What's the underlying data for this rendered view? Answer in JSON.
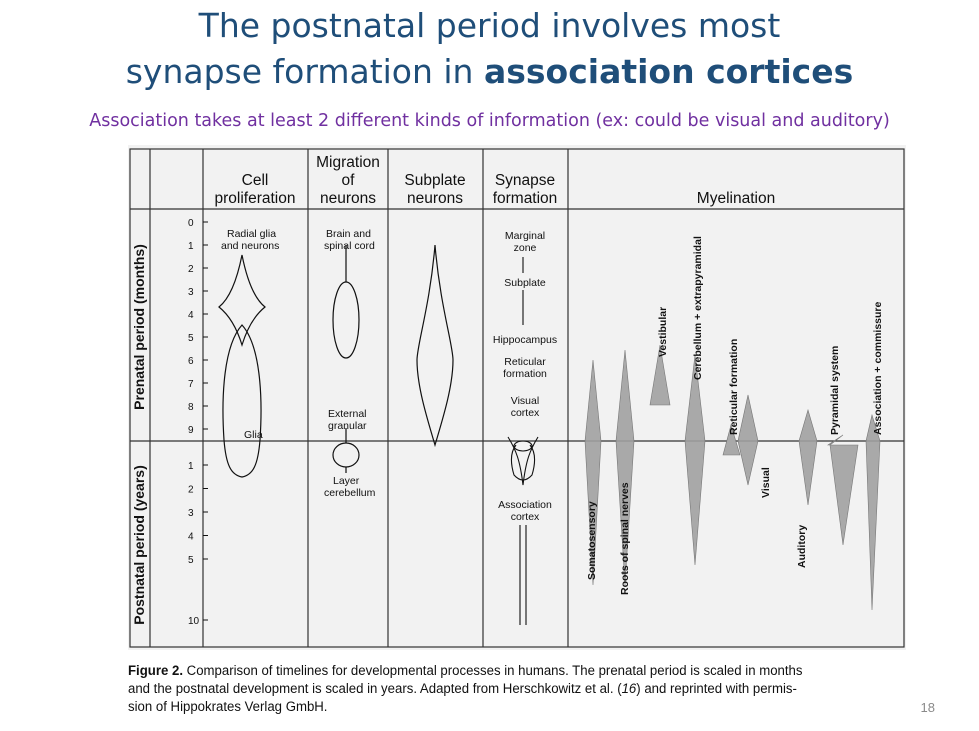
{
  "slide": {
    "title_line1": "The postnatal period involves most",
    "title_line2_prefix": "synapse formation in ",
    "title_line2_bold": "association cortices",
    "subtitle": "Association takes at least 2 different kinds of information (ex: could be visual and auditory)",
    "slide_number": "18"
  },
  "figure": {
    "headers": {
      "cell1": "Cell",
      "cell2": "proliferation",
      "mig1": "Migration",
      "mig2": "of",
      "mig3": "neurons",
      "sub1": "Subplate",
      "sub2": "neurons",
      "syn1": "Synapse",
      "syn2": "formation",
      "myelination": "Myelination"
    },
    "prenatal_label": "Prenatal period (months)",
    "postnatal_label": "Postnatal period (years)",
    "prenatal_ticks": [
      "0",
      "1",
      "2",
      "3",
      "4",
      "5",
      "6",
      "7",
      "8",
      "9"
    ],
    "postnatal_ticks": [
      "1",
      "2",
      "3",
      "4",
      "5",
      "10"
    ],
    "labels": {
      "radial1": "Radial glia",
      "radial2": "and neurons",
      "glia": "Glia",
      "brain1": "Brain and",
      "brain2": "spinal cord",
      "ext1": "External",
      "ext2": "granular",
      "layer1": "Layer",
      "layer2": "cerebellum",
      "marg1": "Marginal",
      "marg2": "zone",
      "subplate": "Subplate",
      "hippo": "Hippocampus",
      "ret1": "Reticular",
      "ret2": "formation",
      "vis1": "Visual",
      "vis2": "cortex",
      "assoc1": "Association",
      "assoc2": "cortex"
    },
    "myelination_tracts": [
      "Somatosensory",
      "Roots of spinal nerves",
      "Vestibular",
      "Cerebellum + extrapyramidal",
      "Visual",
      "Reticular formation",
      "Auditory",
      "Pyramidal system",
      "Association + commissure"
    ]
  },
  "caption": {
    "figure_label": "Figure 2.",
    "line1": " Comparison of timelines for developmental processes in humans. The prenatal period is scaled in months",
    "line2_pre": "and the postnatal development is scaled in years. Adapted from Herschkowitz et al. (",
    "line2_ref": "16",
    "line2_post": ") and reprinted with permis-",
    "line3": "sion of Hippokrates Verlag GmbH."
  }
}
